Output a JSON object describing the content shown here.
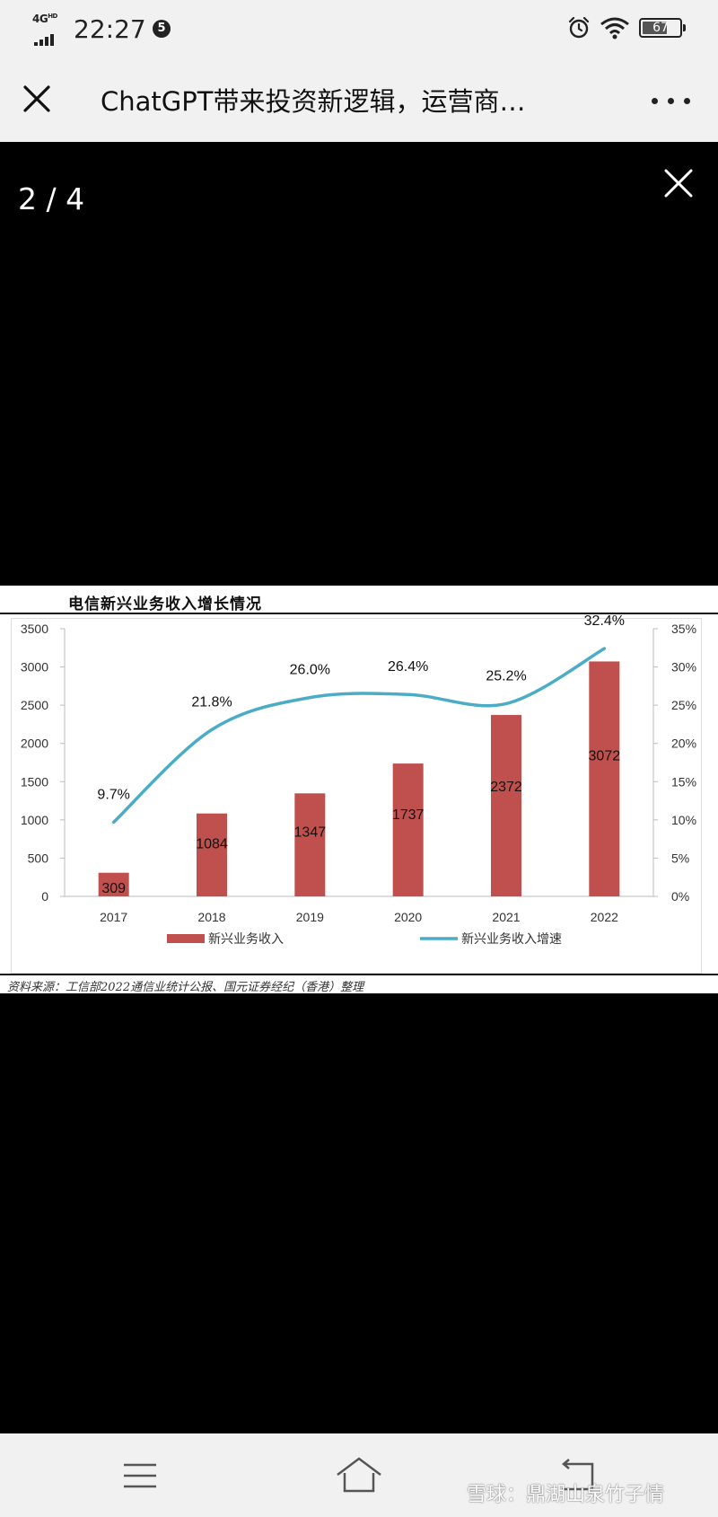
{
  "status_bar": {
    "network": "4G",
    "network_sup": "HD",
    "time": "22:27",
    "notification_count": "5",
    "battery_level": "67",
    "battery_fraction": 0.67
  },
  "header": {
    "title": "ChatGPT带来投资新逻辑，运营商…",
    "close_icon": "close-icon",
    "more_icon": "more-icon"
  },
  "viewer": {
    "page_counter": "2 / 4",
    "close_icon": "close-icon"
  },
  "image": {
    "title": "电信新兴业务收入增长情况",
    "source": "资料来源：工信部2022通信业统计公报、国元证券经纪（香港）整理"
  },
  "chart_data": {
    "type": "bar",
    "categories": [
      "2017",
      "2018",
      "2019",
      "2020",
      "2021",
      "2022"
    ],
    "series": [
      {
        "name": "新兴业务收入",
        "type": "bar",
        "axis": "left",
        "color": "#c0504d",
        "values": [
          309,
          1084,
          1347,
          1737,
          2372,
          3072
        ],
        "value_labels": [
          "309",
          "1084",
          "1347",
          "1737",
          "2372",
          "3072"
        ]
      },
      {
        "name": "新兴业务收入增速",
        "type": "line",
        "axis": "right",
        "color": "#4bacc6",
        "values": [
          9.7,
          21.8,
          26.0,
          26.4,
          25.2,
          32.4
        ],
        "value_labels": [
          "9.7%",
          "21.8%",
          "26.0%",
          "26.4%",
          "25.2%",
          "32.4%"
        ]
      }
    ],
    "y_left": {
      "ylim": [
        0,
        3500
      ],
      "ticks": [
        "0",
        "500",
        "1000",
        "1500",
        "2000",
        "2500",
        "3000",
        "3500"
      ]
    },
    "y_right": {
      "ylim": [
        0,
        35
      ],
      "ticks": [
        "0%",
        "5%",
        "10%",
        "15%",
        "20%",
        "25%",
        "30%",
        "35%"
      ]
    },
    "legend": "bottom",
    "grid": false
  },
  "nav_bar": {
    "menu_icon": "menu-icon",
    "home_icon": "home-icon",
    "back_icon": "back-icon",
    "watermark": "雪球：鼎湖山泉竹子情"
  }
}
